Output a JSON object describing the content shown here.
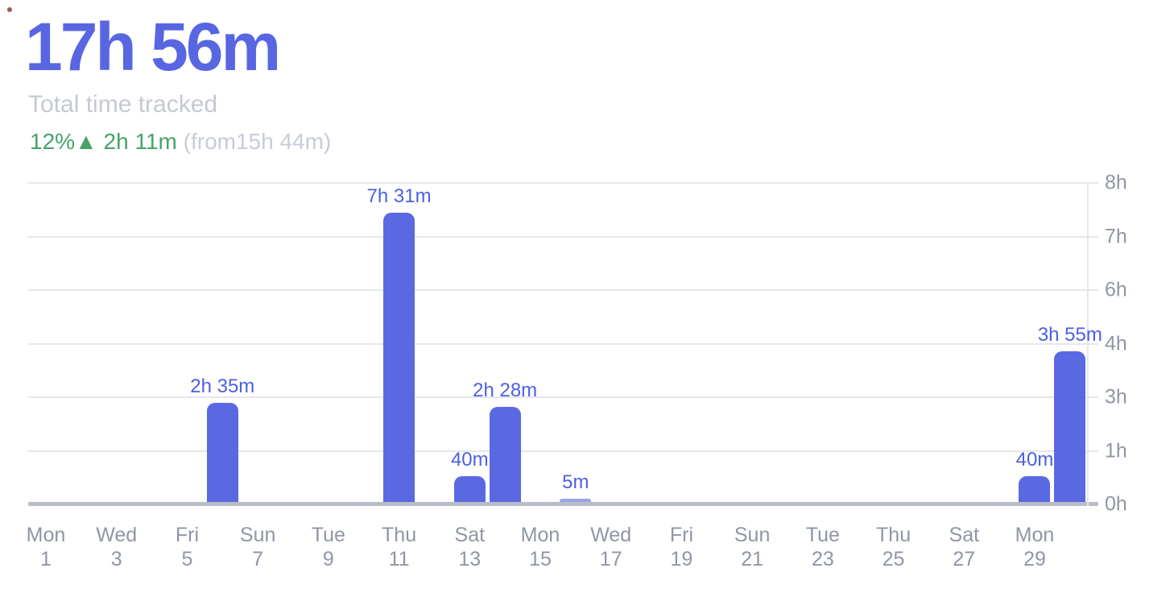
{
  "header": {
    "total": "17h 56m",
    "subtitle": "Total time tracked",
    "change_positive": "12%▲ 2h 11m",
    "change_from": "(from15h 44m)",
    "accent_color": "#5866E2",
    "positive_color": "#45A369"
  },
  "chart_data": {
    "type": "bar",
    "title": "Total time tracked",
    "unit": "hours tracked per day",
    "grid": true,
    "legend_position": "none",
    "bar_color": "#5A69E2",
    "value_label_color": "#4C5FE2",
    "axis_text_color": "#8F96A6",
    "gridline_color": "#E5E7EB",
    "baseline_color": "#B9BDC7",
    "y_axis": {
      "side": "right",
      "range_hours": [
        0,
        8
      ],
      "tick_labels_top_to_bottom": [
        "8h",
        "7h",
        "6h",
        "4h",
        "3h",
        "1h",
        "0h"
      ]
    },
    "x_axis": {
      "tick_labels": [
        {
          "dow": "Mon",
          "date": "1"
        },
        {
          "dow": "Wed",
          "date": "3"
        },
        {
          "dow": "Fri",
          "date": "5"
        },
        {
          "dow": "Sun",
          "date": "7"
        },
        {
          "dow": "Tue",
          "date": "9"
        },
        {
          "dow": "Thu",
          "date": "11"
        },
        {
          "dow": "Sat",
          "date": "13"
        },
        {
          "dow": "Mon",
          "date": "15"
        },
        {
          "dow": "Wed",
          "date": "17"
        },
        {
          "dow": "Fri",
          "date": "19"
        },
        {
          "dow": "Sun",
          "date": "21"
        },
        {
          "dow": "Tue",
          "date": "23"
        },
        {
          "dow": "Thu",
          "date": "25"
        },
        {
          "dow": "Sat",
          "date": "27"
        },
        {
          "dow": "Mon",
          "date": "29"
        }
      ],
      "tick_days": [
        1,
        3,
        5,
        7,
        9,
        11,
        13,
        15,
        17,
        19,
        21,
        23,
        25,
        27,
        29
      ]
    },
    "bars": [
      {
        "day": 6,
        "label": "2h 35m",
        "minutes": 155
      },
      {
        "day": 11,
        "label": "7h 31m",
        "minutes": 451
      },
      {
        "day": 13,
        "label": "40m",
        "minutes": 40
      },
      {
        "day": 14,
        "label": "2h 28m",
        "minutes": 148
      },
      {
        "day": 16,
        "label": "5m",
        "minutes": 5
      },
      {
        "day": 29,
        "label": "40m",
        "minutes": 40
      },
      {
        "day": 30,
        "label": "3h 55m",
        "minutes": 235
      }
    ]
  }
}
